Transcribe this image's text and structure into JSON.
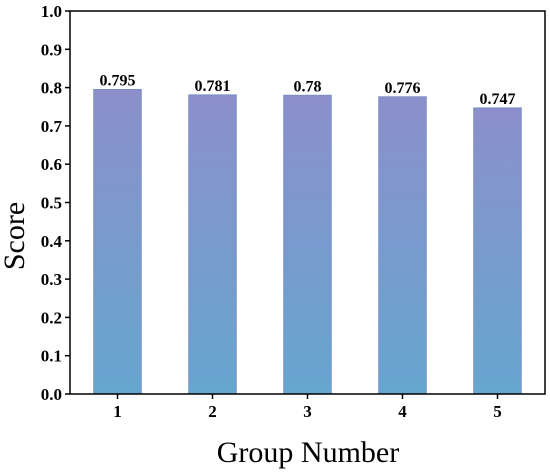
{
  "chart_data": {
    "type": "bar",
    "title": "",
    "xlabel": "Group Number",
    "ylabel": "Score",
    "categories": [
      "1",
      "2",
      "3",
      "4",
      "5"
    ],
    "values": [
      0.795,
      0.781,
      0.78,
      0.776,
      0.747
    ],
    "data_labels": [
      "0.795",
      "0.781",
      "0.78",
      "0.776",
      "0.747"
    ],
    "ylim": [
      0.0,
      1.0
    ],
    "yticks": [
      "0.0",
      "0.1",
      "0.2",
      "0.3",
      "0.4",
      "0.5",
      "0.6",
      "0.7",
      "0.8",
      "0.9",
      "1.0"
    ],
    "grid": false,
    "legend": "none",
    "colors": {
      "bar_top": "#8C8FCC",
      "bar_bottom": "#65A6CF",
      "bar_stroke": "#7A8FC0",
      "axis": "#000000"
    }
  }
}
